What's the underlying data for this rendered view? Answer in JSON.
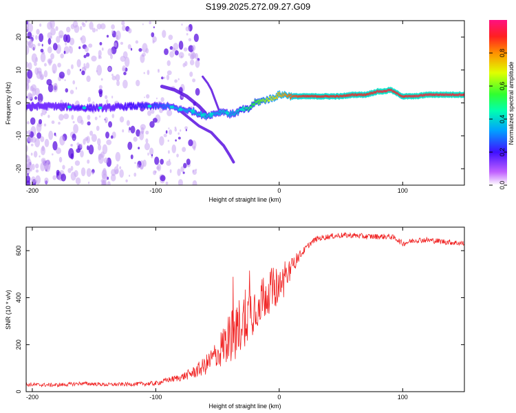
{
  "title": "S199.2025.272.09.27.G09",
  "colors": {
    "axis": "#000000",
    "snr_line": "#f02020",
    "spectrum_main": "#5b10e0",
    "spectrum_faint": "#c9a6f2"
  },
  "chart_data": [
    {
      "id": "spectrogram",
      "type": "heatmap",
      "xlabel": "Height of straight line (km)",
      "ylabel": "Frequency (Hz)",
      "xlim": [
        -205,
        150
      ],
      "ylim": [
        -25,
        25
      ],
      "xticks": [
        -200,
        -100,
        0,
        100
      ],
      "yticks": [
        -20,
        -10,
        0,
        10,
        20
      ],
      "xtick_labels": [
        "-200",
        "-100",
        "0",
        "100"
      ],
      "ytick_labels": [
        "-20",
        "-10",
        "0",
        "10",
        "20"
      ],
      "colorbar": {
        "label": "Normalized spectral amplitude",
        "range": [
          0,
          1
        ],
        "ticks": [
          0.0,
          0.2,
          0.4,
          0.6,
          0.8
        ],
        "tick_labels": [
          "0.0",
          "0.2",
          "0.4",
          "0.6",
          "0.8"
        ]
      },
      "main_trace": {
        "x": [
          -205,
          -180,
          -160,
          -140,
          -120,
          -100,
          -90,
          -80,
          -70,
          -60,
          -50,
          -45,
          -40,
          -35,
          -30,
          -25,
          -20,
          -15,
          -10,
          -5,
          0,
          5,
          10,
          20,
          30,
          40,
          50,
          60,
          70,
          75,
          80,
          85,
          90,
          95,
          100,
          110,
          120,
          130,
          140,
          150
        ],
        "y": [
          -1,
          -1,
          -1.5,
          -1.5,
          -1,
          -1,
          -1,
          -2,
          -2.5,
          -4,
          -3,
          -2.5,
          -3.5,
          -3,
          -2,
          -2,
          0,
          0.5,
          1,
          1.5,
          2.5,
          2.5,
          2,
          2,
          2,
          2,
          2,
          2.5,
          2.5,
          3,
          3.5,
          3.5,
          4,
          3,
          2,
          2,
          2.5,
          2.5,
          2.5,
          2.5
        ],
        "amplitude": [
          0.15,
          0.15,
          0.2,
          0.15,
          0.2,
          0.25,
          0.3,
          0.35,
          0.35,
          0.4,
          0.35,
          0.4,
          0.35,
          0.4,
          0.45,
          0.5,
          0.55,
          0.6,
          0.65,
          0.7,
          0.75,
          0.8,
          0.85,
          0.9,
          0.9,
          0.9,
          0.9,
          0.9,
          0.9,
          0.9,
          0.92,
          0.92,
          0.92,
          0.9,
          0.9,
          0.92,
          0.92,
          0.92,
          0.92,
          0.92
        ]
      },
      "branch_upper": {
        "x": [
          -95,
          -85,
          -75,
          -65,
          -60
        ],
        "y": [
          5,
          4,
          2,
          -1,
          -3
        ]
      },
      "branch_lower": {
        "x": [
          -85,
          -75,
          -65,
          -55,
          -50,
          -45,
          -40,
          -37
        ],
        "y": [
          -1,
          -4,
          -7,
          -9,
          -11,
          -13,
          -16,
          -18
        ]
      },
      "branch_diag": {
        "x": [
          -62,
          -58,
          -55,
          -52,
          -50,
          -48
        ],
        "y": [
          8,
          6,
          4,
          1,
          -1,
          -3
        ]
      }
    },
    {
      "id": "snr",
      "type": "line",
      "xlabel": "Height of straight line (km)",
      "ylabel": "SNR (10 * v/v)",
      "xlim": [
        -205,
        150
      ],
      "ylim": [
        0,
        700
      ],
      "xticks": [
        -200,
        -100,
        0,
        100
      ],
      "yticks": [
        0,
        200,
        400,
        600
      ],
      "xtick_labels": [
        "-200",
        "-100",
        "0",
        "100"
      ],
      "ytick_labels": [
        "0",
        "200",
        "400",
        "600"
      ],
      "series": [
        {
          "name": "SNR",
          "x": [
            -205,
            -180,
            -160,
            -140,
            -120,
            -100,
            -90,
            -80,
            -70,
            -60,
            -50,
            -45,
            -40,
            -35,
            -30,
            -25,
            -20,
            -15,
            -10,
            -5,
            0,
            5,
            10,
            15,
            20,
            25,
            30,
            40,
            50,
            60,
            70,
            80,
            90,
            95,
            100,
            110,
            120,
            130,
            140,
            150
          ],
          "y": [
            30,
            28,
            35,
            30,
            32,
            35,
            50,
            60,
            80,
            110,
            160,
            200,
            230,
            260,
            300,
            330,
            360,
            390,
            420,
            440,
            450,
            480,
            530,
            570,
            600,
            630,
            650,
            660,
            665,
            665,
            660,
            660,
            660,
            650,
            630,
            645,
            645,
            640,
            635,
            630
          ],
          "noise": [
            8,
            8,
            8,
            8,
            8,
            10,
            12,
            15,
            25,
            40,
            70,
            90,
            110,
            130,
            120,
            120,
            110,
            100,
            100,
            90,
            80,
            70,
            40,
            25,
            15,
            12,
            12,
            12,
            12,
            12,
            12,
            12,
            12,
            12,
            12,
            12,
            12,
            12,
            12,
            12
          ]
        }
      ]
    }
  ]
}
